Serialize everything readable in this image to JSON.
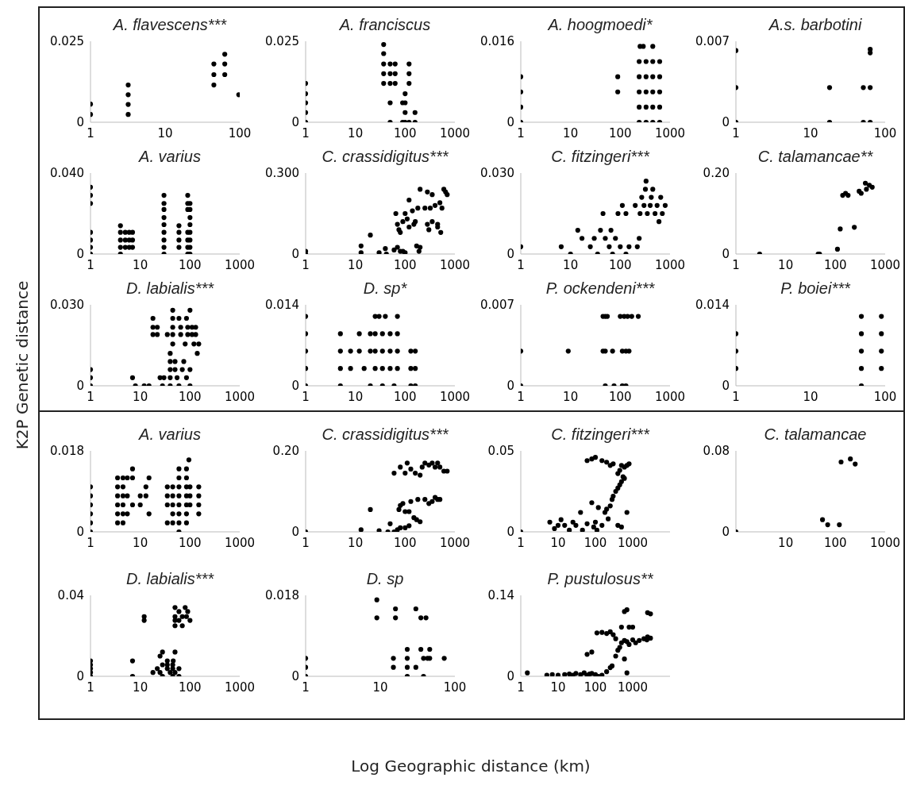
{
  "chart_data": [
    {
      "type": "scatter",
      "title": "A. flavescens***",
      "annotations": [
        "K2P Genetic distance",
        "Log Geographic distance (km)"
      ],
      "log": "x",
      "marker": "circle",
      "color": "#000000",
      "xlim": [
        1,
        100
      ],
      "xticks": [
        1,
        10,
        100
      ],
      "ylim": [
        0,
        0.025
      ],
      "yticks": [
        0,
        0.025
      ],
      "x": [
        1,
        1,
        3.2,
        3.2,
        3.2,
        3.2,
        45,
        45,
        45,
        63,
        63,
        63,
        97
      ],
      "values": [
        0.0056,
        0.0024,
        0.0115,
        0.0085,
        0.0055,
        0.0024,
        0.018,
        0.0147,
        0.0115,
        0.021,
        0.018,
        0.0147,
        0.0085
      ]
    },
    {
      "type": "scatter",
      "title": "A. franciscus",
      "log": "x",
      "marker": "circle",
      "color": "#000000",
      "xlim": [
        1,
        1000
      ],
      "xticks": [
        1,
        10,
        100,
        1000
      ],
      "ylim": [
        0,
        0.025
      ],
      "yticks": [
        0,
        0.025
      ],
      "x": [
        1,
        1,
        1,
        1,
        1,
        37,
        37,
        37,
        37,
        37,
        50,
        50,
        50,
        50,
        50,
        63,
        63,
        63,
        89,
        89,
        100,
        100,
        100,
        100,
        120,
        120,
        120,
        120,
        158,
        158
      ],
      "values": [
        0.012,
        0.0088,
        0.006,
        0.003,
        0,
        0.024,
        0.0212,
        0.018,
        0.015,
        0.012,
        0.018,
        0.015,
        0.012,
        0.006,
        0,
        0.018,
        0.015,
        0.012,
        0.006,
        0,
        0.0088,
        0.006,
        0.003,
        0,
        0.018,
        0.015,
        0.012,
        0,
        0.003,
        0
      ]
    },
    {
      "type": "scatter",
      "title": "A. hoogmoedi*",
      "log": "x",
      "marker": "circle",
      "color": "#000000",
      "xlim": [
        1,
        1000
      ],
      "xticks": [
        1,
        10,
        100,
        1000
      ],
      "ylim": [
        0,
        0.016
      ],
      "yticks": [
        0,
        0.016
      ],
      "x": [
        1,
        1,
        1,
        1,
        89,
        89,
        240,
        330,
        450,
        620,
        240,
        330,
        450,
        620,
        240,
        330,
        450,
        620,
        240,
        330,
        450,
        620,
        240,
        330,
        450,
        620,
        250,
        290,
        450
      ],
      "values": [
        0.009,
        0.006,
        0.003,
        0,
        0.009,
        0.006,
        0.012,
        0.012,
        0.012,
        0.012,
        0.009,
        0.009,
        0.009,
        0.009,
        0.006,
        0.006,
        0.006,
        0.006,
        0.003,
        0.003,
        0.003,
        0.003,
        0,
        0,
        0,
        0,
        0.015,
        0.015,
        0.015
      ]
    },
    {
      "type": "scatter",
      "title": "A.s. barbotini",
      "log": "x",
      "marker": "circle",
      "color": "#000000",
      "xlim": [
        1,
        100
      ],
      "xticks": [
        1,
        10,
        100
      ],
      "ylim": [
        0,
        0.007
      ],
      "yticks": [
        0,
        0.007
      ],
      "x": [
        1,
        1,
        1,
        18,
        18,
        51,
        51,
        63,
        63,
        63,
        63
      ],
      "values": [
        0.0062,
        0.003,
        0,
        0.003,
        0,
        0.003,
        0,
        0.003,
        0,
        0.006,
        0.0063
      ]
    },
    {
      "type": "scatter",
      "title": "A. varius",
      "log": "x",
      "marker": "circle",
      "color": "#000000",
      "xlim": [
        1,
        1000
      ],
      "xticks": [
        1,
        10,
        100,
        1000
      ],
      "ylim": [
        0,
        0.04
      ],
      "yticks": [
        0,
        {
          "value": 0.04,
          "label": "0.040"
        }
      ],
      "x": [
        1,
        1,
        1,
        1,
        1,
        1,
        1,
        4,
        4,
        4,
        4,
        4,
        5,
        5,
        5,
        6,
        6,
        6,
        7,
        7,
        7,
        30,
        30,
        30,
        30,
        30,
        30,
        30,
        30,
        30,
        60,
        60,
        60,
        60,
        90,
        90,
        90,
        90,
        90,
        90,
        90,
        100,
        100,
        100,
        100,
        100,
        100,
        100,
        100
      ],
      "values": [
        0.033,
        0.029,
        0.025,
        0.0107,
        0.0069,
        0.0033,
        0,
        0.014,
        0.0107,
        0.0069,
        0.0033,
        0,
        0.0107,
        0.0069,
        0.0033,
        0.0107,
        0.0069,
        0.0033,
        0.0107,
        0.0069,
        0.0033,
        0.029,
        0.025,
        0.022,
        0.018,
        0.0145,
        0.0107,
        0.0069,
        0.0033,
        0,
        0.014,
        0.0107,
        0.0069,
        0.0033,
        0.029,
        0.025,
        0.022,
        0.0107,
        0.0069,
        0.0033,
        0,
        0.025,
        0.022,
        0.018,
        0.0145,
        0.0107,
        0.0069,
        0.0033,
        0
      ]
    },
    {
      "type": "scatter",
      "title": "C. crassidigitus***",
      "log": "x",
      "marker": "circle",
      "color": "#000000",
      "xlim": [
        1,
        1000
      ],
      "xticks": [
        1,
        10,
        100,
        1000
      ],
      "ylim": [
        0,
        0.3
      ],
      "yticks": [
        0,
        {
          "value": 0.3,
          "label": "0.300"
        }
      ],
      "x": [
        1,
        1,
        13,
        13,
        20,
        30,
        40,
        42,
        60,
        70,
        80,
        90,
        100,
        170,
        200,
        190,
        65,
        70,
        75,
        80,
        90,
        100,
        110,
        120,
        140,
        160,
        180,
        200,
        250,
        280,
        300,
        320,
        350,
        400,
        450,
        500,
        550,
        600,
        650,
        700,
        280,
        350,
        450,
        520,
        120,
        150
      ],
      "values": [
        0.01,
        0,
        0.03,
        0.005,
        0.07,
        0.005,
        0.02,
        0,
        0.015,
        0.025,
        0.01,
        0.01,
        0.005,
        0.03,
        0.025,
        0.01,
        0.15,
        0.11,
        0.09,
        0.08,
        0.12,
        0.15,
        0.13,
        0.1,
        0.16,
        0.12,
        0.17,
        0.24,
        0.17,
        0.11,
        0.09,
        0.17,
        0.12,
        0.18,
        0.1,
        0.19,
        0.17,
        0.24,
        0.23,
        0.22,
        0.23,
        0.22,
        0.11,
        0.08,
        0.2,
        0.11
      ]
    },
    {
      "type": "scatter",
      "title": "C. fitzingeri***",
      "log": "x",
      "marker": "circle",
      "color": "#000000",
      "xlim": [
        1,
        1000
      ],
      "xticks": [
        1,
        10,
        100,
        1000
      ],
      "ylim": [
        0,
        0.03
      ],
      "yticks": [
        0,
        {
          "value": 0.03,
          "label": "0.030"
        }
      ],
      "x": [
        1,
        6.5,
        10,
        14,
        17,
        25,
        30,
        35,
        40,
        45,
        50,
        60,
        65,
        70,
        80,
        90,
        100,
        110,
        130,
        150,
        200,
        220,
        250,
        270,
        300,
        320,
        330,
        350,
        400,
        420,
        450,
        500,
        550,
        600,
        650,
        700,
        800,
        240,
        130
      ],
      "values": [
        0.0027,
        0.0027,
        0,
        0.0088,
        0.0058,
        0.0027,
        0.0058,
        0,
        0.0088,
        0.015,
        0.0058,
        0.0027,
        0.0088,
        0,
        0.0058,
        0.015,
        0.0027,
        0.018,
        0.015,
        0.0027,
        0.018,
        0.0027,
        0.015,
        0.021,
        0.018,
        0.024,
        0.027,
        0.015,
        0.018,
        0.021,
        0.024,
        0.015,
        0.018,
        0.012,
        0.021,
        0.015,
        0.018,
        0.0058,
        0
      ]
    },
    {
      "type": "scatter",
      "title": "C. talamancae**",
      "log": "x",
      "marker": "circle",
      "color": "#000000",
      "xlim": [
        1,
        1000
      ],
      "xticks": [
        1,
        10,
        100,
        1000
      ],
      "ylim": [
        0,
        0.2
      ],
      "yticks": [
        0,
        {
          "value": 0.2,
          "label": "0.20"
        }
      ],
      "x": [
        3,
        45,
        48,
        110,
        125,
        140,
        160,
        180,
        240,
        300,
        330,
        400,
        420,
        480,
        550
      ],
      "values": [
        0,
        0,
        0,
        0.012,
        0.062,
        0.145,
        0.15,
        0.145,
        0.066,
        0.155,
        0.15,
        0.175,
        0.16,
        0.17,
        0.165
      ]
    },
    {
      "type": "scatter",
      "title": "D. labialis***",
      "log": "x",
      "marker": "circle",
      "color": "#000000",
      "xlim": [
        1,
        1000
      ],
      "xticks": [
        1,
        10,
        100,
        1000
      ],
      "ylim": [
        0,
        0.03
      ],
      "yticks": [
        0,
        {
          "value": 0.03,
          "label": "0.030"
        }
      ],
      "x": [
        1,
        1,
        1,
        7,
        8,
        12,
        15,
        18,
        18,
        18,
        22,
        22,
        25,
        28,
        30,
        35,
        40,
        40,
        40,
        40,
        40,
        45,
        45,
        45,
        45,
        45,
        50,
        50,
        55,
        60,
        60,
        65,
        65,
        70,
        75,
        80,
        85,
        85,
        90,
        90,
        100,
        100,
        100,
        110,
        110,
        120,
        130,
        130,
        140,
        150
      ],
      "values": [
        0.006,
        0.003,
        0,
        0.003,
        0,
        0,
        0,
        0.025,
        0.0217,
        0.019,
        0.0217,
        0.019,
        0.003,
        0,
        0.003,
        0.019,
        0.012,
        0.009,
        0.006,
        0.003,
        0,
        0.028,
        0.025,
        0.0217,
        0.019,
        0.0155,
        0.009,
        0.006,
        0.003,
        0,
        0.025,
        0.0217,
        0.019,
        0.006,
        0.009,
        0.0155,
        0.025,
        0.003,
        0.0217,
        0.019,
        0.028,
        0.006,
        0,
        0.0217,
        0.019,
        0.0155,
        0.0217,
        0.019,
        0.012,
        0.0155
      ]
    },
    {
      "type": "scatter",
      "title": "D. sp*",
      "log": "x",
      "marker": "circle",
      "color": "#000000",
      "xlim": [
        1,
        1000
      ],
      "xticks": [
        1,
        10,
        100,
        1000
      ],
      "ylim": [
        0,
        0.014
      ],
      "yticks": [
        0,
        0.014
      ],
      "x": [
        1,
        1,
        1,
        1,
        1,
        5,
        5,
        5,
        5,
        8,
        8,
        12,
        12,
        15,
        20,
        20,
        20,
        25,
        25,
        25,
        25,
        30,
        35,
        35,
        35,
        35,
        40,
        50,
        50,
        50,
        60,
        70,
        70,
        70,
        70,
        130,
        130,
        130,
        160,
        160,
        160
      ],
      "values": [
        0.012,
        0.009,
        0.006,
        0.003,
        0,
        0.009,
        0.006,
        0.003,
        0,
        0.006,
        0.003,
        0.009,
        0.006,
        0.003,
        0.006,
        0.009,
        0,
        0.012,
        0.009,
        0.006,
        0.003,
        0.012,
        0.009,
        0.006,
        0.003,
        0,
        0.012,
        0.009,
        0.006,
        0.003,
        0,
        0.012,
        0.009,
        0.006,
        0.003,
        0.006,
        0.003,
        0,
        0.006,
        0.003,
        0
      ]
    },
    {
      "type": "scatter",
      "title": "P. ockendeni***",
      "log": "x",
      "marker": "circle",
      "color": "#000000",
      "xlim": [
        1,
        1000
      ],
      "xticks": [
        1,
        10,
        100,
        1000
      ],
      "ylim": [
        0,
        0.007
      ],
      "yticks": [
        0,
        0.007
      ],
      "x": [
        1,
        1,
        9,
        45,
        50,
        55,
        45,
        50,
        50,
        70,
        75,
        100,
        110,
        120,
        130,
        140,
        150,
        170,
        110,
        130,
        230
      ],
      "values": [
        0.003,
        0,
        0.003,
        0.006,
        0.006,
        0.006,
        0.003,
        0.003,
        0,
        0.003,
        0,
        0.006,
        0.003,
        0.006,
        0.003,
        0.006,
        0.003,
        0.006,
        0,
        0,
        0.006
      ]
    },
    {
      "type": "scatter",
      "title": "P. boiei***",
      "log": "x",
      "marker": "circle",
      "color": "#000000",
      "xlim": [
        1,
        100
      ],
      "xticks": [
        1,
        10,
        100
      ],
      "ylim": [
        0,
        0.014
      ],
      "yticks": [
        0,
        0.014
      ],
      "x": [
        1,
        1,
        1,
        48,
        48,
        48,
        48,
        48,
        89,
        89,
        89,
        89
      ],
      "values": [
        0.009,
        0.006,
        0.003,
        0.012,
        0.009,
        0.006,
        0.003,
        0,
        0.012,
        0.009,
        0.006,
        0.003
      ]
    },
    {
      "type": "scatter",
      "title": "A. varius",
      "log": "x",
      "marker": "circle",
      "color": "#000000",
      "xlim": [
        1,
        1000
      ],
      "xticks": [
        1,
        10,
        100,
        1000
      ],
      "ylim": [
        0,
        0.018
      ],
      "yticks": [
        0,
        0.018
      ],
      "x": [
        1,
        1,
        1,
        1,
        1,
        1,
        3.5,
        3.5,
        3.5,
        3.5,
        3.5,
        3.5,
        4.5,
        4.5,
        4.5,
        4.5,
        4.5,
        4.5,
        5.5,
        5.5,
        5.5,
        7,
        7,
        7,
        10,
        10,
        13,
        13,
        15,
        15,
        35,
        35,
        35,
        35,
        45,
        45,
        45,
        45,
        45,
        60,
        60,
        60,
        60,
        60,
        60,
        60,
        60,
        85,
        85,
        85,
        85,
        85,
        85,
        85,
        95,
        100,
        100,
        100,
        150,
        150,
        150,
        150
      ],
      "values": [
        0.01,
        0.008,
        0.006,
        0.004,
        0.002,
        0,
        0.012,
        0.01,
        0.008,
        0.006,
        0.004,
        0.002,
        0.012,
        0.01,
        0.008,
        0.006,
        0.004,
        0.002,
        0.012,
        0.008,
        0.004,
        0.014,
        0.012,
        0.006,
        0.008,
        0.006,
        0.01,
        0.008,
        0.012,
        0.004,
        0.01,
        0.008,
        0.006,
        0.002,
        0.01,
        0.008,
        0.006,
        0.004,
        0.002,
        0.014,
        0.012,
        0.01,
        0.008,
        0.006,
        0.004,
        0.002,
        0,
        0.014,
        0.012,
        0.01,
        0.008,
        0.006,
        0.004,
        0.002,
        0.016,
        0.01,
        0.008,
        0.006,
        0.01,
        0.008,
        0.006,
        0.004
      ]
    },
    {
      "type": "scatter",
      "title": "C. crassidigitus***",
      "log": "x",
      "marker": "circle",
      "color": "#000000",
      "xlim": [
        1,
        1000
      ],
      "xticks": [
        1,
        10,
        100,
        1000
      ],
      "ylim": [
        0,
        0.2
      ],
      "yticks": [
        0,
        {
          "value": 0.2,
          "label": "0.20"
        }
      ],
      "x": [
        1,
        13,
        20,
        30,
        45,
        50,
        60,
        70,
        80,
        100,
        120,
        150,
        170,
        200,
        75,
        80,
        90,
        100,
        120,
        130,
        180,
        250,
        300,
        350,
        400,
        450,
        500,
        60,
        80,
        100,
        110,
        130,
        160,
        200,
        220,
        250,
        300,
        350,
        400,
        450,
        500,
        600,
        700
      ],
      "values": [
        0,
        0.005,
        0.055,
        0.003,
        0,
        0.02,
        0,
        0.005,
        0.01,
        0.01,
        0.015,
        0.035,
        0.03,
        0.025,
        0.055,
        0.065,
        0.07,
        0.05,
        0.05,
        0.075,
        0.08,
        0.08,
        0.07,
        0.075,
        0.085,
        0.08,
        0.08,
        0.145,
        0.16,
        0.145,
        0.17,
        0.155,
        0.145,
        0.14,
        0.16,
        0.17,
        0.165,
        0.17,
        0.16,
        0.17,
        0.16,
        0.15,
        0.15
      ]
    },
    {
      "type": "scatter",
      "title": "C. fitzingeri***",
      "log": "x",
      "marker": "circle",
      "color": "#000000",
      "xlim": [
        1,
        10000
      ],
      "xticks": [
        1,
        10,
        100,
        1000
      ],
      "ylim": [
        0,
        0.05
      ],
      "yticks": [
        0,
        0.05
      ],
      "x": [
        1,
        6,
        8,
        10,
        12,
        15,
        20,
        25,
        30,
        40,
        45,
        60,
        80,
        90,
        100,
        110,
        120,
        150,
        180,
        200,
        220,
        250,
        280,
        300,
        350,
        400,
        450,
        500,
        550,
        400,
        450,
        600,
        500,
        600,
        700,
        300,
        200,
        150,
        80,
        100,
        60,
        250,
        800,
        700,
        400,
        500
      ],
      "values": [
        0,
        0.006,
        0.002,
        0.004,
        0.0075,
        0.004,
        0.001,
        0.006,
        0.004,
        0.012,
        0.001,
        0.005,
        0.018,
        0.003,
        0.006,
        0.001,
        0.015,
        0.004,
        0.012,
        0.014,
        0.008,
        0.016,
        0.02,
        0.022,
        0.025,
        0.027,
        0.029,
        0.031,
        0.034,
        0.036,
        0.038,
        0.033,
        0.041,
        0.04,
        0.041,
        0.042,
        0.043,
        0.044,
        0.045,
        0.046,
        0.044,
        0.041,
        0.042,
        0.012,
        0.004,
        0.003
      ]
    },
    {
      "type": "scatter",
      "title": "C. talamancae",
      "log": "x",
      "marker": "circle",
      "color": "#000000",
      "xlim": [
        1,
        1000
      ],
      "xticks": [
        10,
        100,
        1000
      ],
      "ylim": [
        0,
        0.08
      ],
      "yticks": [
        0,
        0.08
      ],
      "x": [
        1,
        55,
        70,
        120,
        130,
        200,
        250
      ],
      "values": [
        0,
        0.012,
        0.007,
        0.007,
        0.069,
        0.072,
        0.067
      ]
    },
    {
      "type": "scatter",
      "title": "D. labialis***",
      "log": "x",
      "marker": "circle",
      "color": "#000000",
      "xlim": [
        1,
        1000
      ],
      "xticks": [
        1,
        10,
        100,
        1000
      ],
      "ylim": [
        0,
        0.04
      ],
      "yticks": [
        0,
        0.04
      ],
      "x": [
        1,
        1,
        1,
        1,
        1,
        7,
        7,
        12,
        12,
        18,
        22,
        25,
        25,
        28,
        28,
        28,
        35,
        35,
        35,
        40,
        46,
        45,
        45,
        45,
        50,
        50,
        50,
        50,
        50,
        50,
        60,
        60,
        60,
        60,
        70,
        70,
        80,
        85,
        90,
        100
      ],
      "values": [
        0.0076,
        0.0057,
        0.0038,
        0.0019,
        0,
        0.0076,
        0,
        0.0295,
        0.0276,
        0.0019,
        0.0038,
        0.0019,
        0.01,
        0.012,
        0.0057,
        0,
        0.0076,
        0.0057,
        0.0038,
        0.0019,
        0.0076,
        0.0057,
        0.0038,
        0,
        0.034,
        0.0295,
        0.0276,
        0.025,
        0.012,
        0.0019,
        0.032,
        0.0276,
        0.0038,
        0,
        0.0295,
        0.025,
        0.034,
        0.0295,
        0.032,
        0.0276
      ]
    },
    {
      "type": "scatter",
      "title": "D. sp",
      "log": "x",
      "marker": "circle",
      "color": "#000000",
      "xlim": [
        1,
        100
      ],
      "xticks": [
        1,
        10,
        100
      ],
      "ylim": [
        0,
        0.018
      ],
      "yticks": [
        0,
        0.018
      ],
      "x": [
        1,
        1,
        1,
        9,
        9,
        16,
        16,
        15,
        15,
        23,
        23,
        23,
        23,
        30,
        30,
        35,
        35,
        38,
        41,
        43,
        46,
        46,
        38,
        72
      ],
      "values": [
        0.004,
        0.002,
        0,
        0.017,
        0.013,
        0.015,
        0.013,
        0.004,
        0.002,
        0.006,
        0.004,
        0.002,
        0,
        0.015,
        0.002,
        0.013,
        0.006,
        0.004,
        0.013,
        0.004,
        0.006,
        0.004,
        0,
        0.004
      ]
    },
    {
      "type": "scatter",
      "title": "P. pustulosus**",
      "log": "x",
      "marker": "circle",
      "color": "#000000",
      "xlim": [
        1,
        10000
      ],
      "xticks": [
        1,
        10,
        100,
        1000
      ],
      "ylim": [
        0,
        0.14
      ],
      "yticks": [
        0,
        0.14
      ],
      "x": [
        1.5,
        5,
        7,
        10,
        15,
        20,
        25,
        30,
        40,
        50,
        60,
        70,
        80,
        100,
        120,
        150,
        200,
        250,
        280,
        350,
        60,
        80,
        110,
        150,
        200,
        250,
        300,
        350,
        400,
        450,
        500,
        600,
        700,
        800,
        1000,
        1200,
        1500,
        2000,
        2500,
        2400,
        3000,
        500,
        600,
        700,
        800,
        1000,
        2500,
        3000,
        600,
        700
      ],
      "values": [
        0.006,
        0.002,
        0.003,
        0.002,
        0.003,
        0.004,
        0.002,
        0.005,
        0.003,
        0.006,
        0.002,
        0.004,
        0.005,
        0.003,
        0,
        0.002,
        0.008,
        0.015,
        0.018,
        0.035,
        0.038,
        0.042,
        0.075,
        0.076,
        0.074,
        0.077,
        0.072,
        0.065,
        0.045,
        0.05,
        0.058,
        0.062,
        0.06,
        0.055,
        0.063,
        0.058,
        0.062,
        0.065,
        0.068,
        0.063,
        0.066,
        0.085,
        0.112,
        0.115,
        0.085,
        0.085,
        0.11,
        0.108,
        0.03,
        0.006
      ]
    }
  ]
}
